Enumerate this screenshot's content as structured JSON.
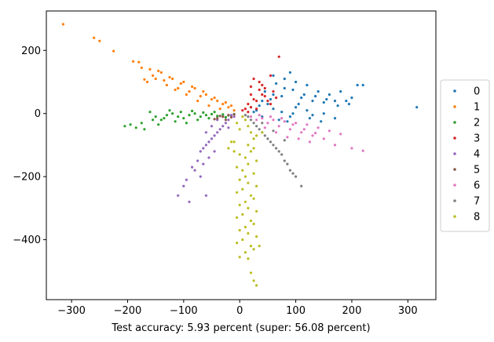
{
  "chart_data": {
    "type": "scatter",
    "title": "",
    "xlabel": "Test accuracy: 5.93 percent (super: 56.08 percent)",
    "ylabel": "",
    "xlim": [
      -345,
      350
    ],
    "ylim": [
      -590,
      325
    ],
    "xticks": [
      -300,
      -200,
      -100,
      0,
      100,
      200,
      300
    ],
    "yticks": [
      200,
      0,
      -200,
      -400
    ],
    "xtick_labels": [
      "−300",
      "−200",
      "−100",
      "0",
      "100",
      "200",
      "300"
    ],
    "ytick_labels": [
      "200",
      "0",
      "−200",
      "−400"
    ],
    "grid": false,
    "legend_position": "center-right-outside",
    "series": [
      {
        "name": "0",
        "color": "#1f77b4",
        "points": [
          [
            20,
            20
          ],
          [
            40,
            40
          ],
          [
            60,
            60
          ],
          [
            80,
            80
          ],
          [
            100,
            100
          ],
          [
            120,
            90
          ],
          [
            140,
            70
          ],
          [
            160,
            60
          ],
          [
            180,
            70
          ],
          [
            200,
            50
          ],
          [
            220,
            90
          ],
          [
            210,
            90
          ],
          [
            316,
            20
          ],
          [
            100,
            20
          ],
          [
            120,
            10
          ],
          [
            60,
            15
          ],
          [
            70,
            -20
          ],
          [
            90,
            -10
          ],
          [
            130,
            -5
          ],
          [
            150,
            0
          ],
          [
            170,
            -15
          ],
          [
            50,
            30
          ],
          [
            30,
            10
          ],
          [
            80,
            110
          ],
          [
            60,
            120
          ],
          [
            90,
            130
          ],
          [
            110,
            50
          ],
          [
            130,
            40
          ],
          [
            150,
            35
          ],
          [
            170,
            40
          ],
          [
            190,
            40
          ],
          [
            45,
            70
          ],
          [
            85,
            -25
          ],
          [
            40,
            -10
          ],
          [
            25,
            5
          ],
          [
            35,
            25
          ],
          [
            55,
            45
          ],
          [
            75,
            55
          ],
          [
            95,
            75
          ],
          [
            115,
            60
          ],
          [
            135,
            55
          ],
          [
            155,
            45
          ],
          [
            175,
            25
          ],
          [
            195,
            30
          ],
          [
            65,
            95
          ],
          [
            105,
            30
          ],
          [
            125,
            -15
          ],
          [
            145,
            -25
          ],
          [
            75,
            5
          ],
          [
            95,
            0
          ]
        ]
      },
      {
        "name": "1",
        "color": "#ff7f0e",
        "points": [
          [
            -315,
            283
          ],
          [
            -260,
            240
          ],
          [
            -250,
            230
          ],
          [
            -225,
            198
          ],
          [
            -190,
            165
          ],
          [
            -180,
            163
          ],
          [
            -160,
            140
          ],
          [
            -140,
            130
          ],
          [
            -150,
            110
          ],
          [
            -120,
            110
          ],
          [
            -100,
            100
          ],
          [
            -80,
            80
          ],
          [
            -60,
            60
          ],
          [
            -40,
            40
          ],
          [
            -20,
            20
          ],
          [
            -170,
            108
          ],
          [
            -130,
            90
          ],
          [
            -110,
            80
          ],
          [
            -90,
            70
          ],
          [
            -70,
            55
          ],
          [
            -50,
            45
          ],
          [
            -30,
            30
          ],
          [
            -10,
            10
          ],
          [
            -145,
            135
          ],
          [
            -165,
            100
          ],
          [
            -125,
            115
          ],
          [
            -105,
            95
          ],
          [
            -85,
            85
          ],
          [
            -65,
            70
          ],
          [
            -45,
            50
          ],
          [
            -25,
            35
          ],
          [
            -55,
            25
          ],
          [
            -35,
            15
          ],
          [
            -15,
            25
          ],
          [
            -95,
            60
          ],
          [
            -75,
            40
          ],
          [
            -115,
            75
          ],
          [
            -135,
            105
          ],
          [
            -155,
            120
          ],
          [
            -175,
            145
          ]
        ]
      },
      {
        "name": "2",
        "color": "#2ca02c",
        "points": [
          [
            -205,
            -40
          ],
          [
            -185,
            -45
          ],
          [
            -170,
            -50
          ],
          [
            -160,
            5
          ],
          [
            -150,
            -10
          ],
          [
            -140,
            -20
          ],
          [
            -130,
            -5
          ],
          [
            -120,
            0
          ],
          [
            -110,
            -10
          ],
          [
            -100,
            -15
          ],
          [
            -90,
            -5
          ],
          [
            -80,
            0
          ],
          [
            -70,
            -10
          ],
          [
            -60,
            -5
          ],
          [
            -50,
            -2
          ],
          [
            -40,
            -8
          ],
          [
            -30,
            -3
          ],
          [
            -20,
            -6
          ],
          [
            -10,
            -2
          ],
          [
            -155,
            -20
          ],
          [
            -135,
            -15
          ],
          [
            -115,
            -25
          ],
          [
            -95,
            -30
          ],
          [
            -75,
            -20
          ],
          [
            -125,
            10
          ],
          [
            -105,
            5
          ],
          [
            -85,
            8
          ],
          [
            -65,
            3
          ],
          [
            -45,
            5
          ],
          [
            -175,
            -30
          ],
          [
            -195,
            -35
          ],
          [
            -145,
            -35
          ],
          [
            -25,
            -12
          ],
          [
            -55,
            -15
          ]
        ]
      },
      {
        "name": "3",
        "color": "#d62728",
        "points": [
          [
            20,
            20
          ],
          [
            30,
            40
          ],
          [
            40,
            60
          ],
          [
            45,
            80
          ],
          [
            35,
            100
          ],
          [
            25,
            110
          ],
          [
            55,
            120
          ],
          [
            70,
            180
          ],
          [
            15,
            30
          ],
          [
            10,
            15
          ],
          [
            30,
            15
          ],
          [
            50,
            40
          ],
          [
            60,
            70
          ],
          [
            20,
            60
          ],
          [
            40,
            90
          ],
          [
            5,
            10
          ],
          [
            25,
            45
          ],
          [
            45,
            55
          ],
          [
            35,
            75
          ],
          [
            15,
            5
          ],
          [
            55,
            30
          ],
          [
            65,
            50
          ],
          [
            20,
            85
          ]
        ]
      },
      {
        "name": "4",
        "color": "#9467bd",
        "points": [
          [
            -20,
            -20
          ],
          [
            -30,
            -40
          ],
          [
            -40,
            -60
          ],
          [
            -50,
            -80
          ],
          [
            -60,
            -100
          ],
          [
            -70,
            -120
          ],
          [
            -80,
            -180
          ],
          [
            -70,
            -200
          ],
          [
            -100,
            -230
          ],
          [
            -60,
            -260
          ],
          [
            -90,
            -280
          ],
          [
            -110,
            -260
          ],
          [
            -10,
            -10
          ],
          [
            -25,
            -30
          ],
          [
            -35,
            -50
          ],
          [
            -45,
            -70
          ],
          [
            -55,
            -90
          ],
          [
            -65,
            -110
          ],
          [
            -75,
            -150
          ],
          [
            -85,
            -170
          ],
          [
            -95,
            -210
          ],
          [
            -50,
            -40
          ],
          [
            -40,
            -20
          ],
          [
            -30,
            -10
          ],
          [
            -60,
            -60
          ],
          [
            -45,
            -120
          ],
          [
            -55,
            -140
          ],
          [
            -65,
            -160
          ],
          [
            -15,
            -5
          ],
          [
            -20,
            -45
          ]
        ]
      },
      {
        "name": "5",
        "color": "#8c564b",
        "points": [
          [
            -30,
            -10
          ],
          [
            -20,
            -5
          ],
          [
            -40,
            -15
          ],
          [
            -15,
            -12
          ],
          [
            -25,
            -20
          ],
          [
            -35,
            -8
          ],
          [
            -10,
            -3
          ],
          [
            -45,
            -18
          ]
        ]
      },
      {
        "name": "6",
        "color": "#e377c2",
        "points": [
          [
            30,
            -20
          ],
          [
            50,
            -30
          ],
          [
            70,
            -40
          ],
          [
            90,
            -50
          ],
          [
            110,
            -60
          ],
          [
            130,
            -70
          ],
          [
            150,
            -80
          ],
          [
            170,
            -100
          ],
          [
            200,
            -110
          ],
          [
            220,
            -118
          ],
          [
            20,
            -10
          ],
          [
            40,
            -15
          ],
          [
            60,
            -20
          ],
          [
            80,
            -25
          ],
          [
            100,
            -30
          ],
          [
            120,
            -35
          ],
          [
            140,
            -45
          ],
          [
            160,
            -55
          ],
          [
            180,
            -65
          ],
          [
            45,
            -45
          ],
          [
            65,
            -60
          ],
          [
            85,
            -75
          ],
          [
            105,
            -80
          ],
          [
            125,
            -90
          ],
          [
            35,
            -5
          ],
          [
            55,
            -10
          ],
          [
            75,
            -15
          ],
          [
            95,
            -35
          ],
          [
            115,
            -50
          ],
          [
            135,
            -62
          ]
        ]
      },
      {
        "name": "7",
        "color": "#7f7f7f",
        "points": [
          [
            20,
            -20
          ],
          [
            30,
            -40
          ],
          [
            40,
            -60
          ],
          [
            50,
            -80
          ],
          [
            60,
            -100
          ],
          [
            70,
            -120
          ],
          [
            80,
            -150
          ],
          [
            90,
            -180
          ],
          [
            100,
            -200
          ],
          [
            110,
            -230
          ],
          [
            25,
            -30
          ],
          [
            35,
            -50
          ],
          [
            45,
            -70
          ],
          [
            55,
            -90
          ],
          [
            65,
            -110
          ],
          [
            75,
            -130
          ],
          [
            85,
            -160
          ],
          [
            95,
            -190
          ],
          [
            15,
            -10
          ],
          [
            10,
            -5
          ],
          [
            40,
            -30
          ],
          [
            60,
            -55
          ],
          [
            80,
            -85
          ]
        ]
      },
      {
        "name": "8",
        "color": "#bcbd22",
        "points": [
          [
            5,
            -10
          ],
          [
            10,
            -20
          ],
          [
            15,
            -40
          ],
          [
            20,
            -60
          ],
          [
            25,
            -80
          ],
          [
            15,
            -100
          ],
          [
            20,
            -120
          ],
          [
            10,
            -140
          ],
          [
            15,
            -160
          ],
          [
            5,
            -180
          ],
          [
            10,
            -200
          ],
          [
            15,
            -220
          ],
          [
            5,
            -240
          ],
          [
            20,
            -260
          ],
          [
            10,
            -280
          ],
          [
            15,
            -300
          ],
          [
            5,
            -320
          ],
          [
            20,
            -340
          ],
          [
            10,
            -360
          ],
          [
            15,
            -380
          ],
          [
            5,
            -400
          ],
          [
            20,
            -420
          ],
          [
            10,
            -440
          ],
          [
            15,
            -460
          ],
          [
            20,
            -505
          ],
          [
            25,
            -530
          ],
          [
            30,
            -545
          ],
          [
            -5,
            -30
          ],
          [
            0,
            -50
          ],
          [
            30,
            -70
          ],
          [
            -10,
            -90
          ],
          [
            25,
            -110
          ],
          [
            0,
            -130
          ],
          [
            30,
            -150
          ],
          [
            -5,
            -170
          ],
          [
            25,
            -190
          ],
          [
            0,
            -210
          ],
          [
            30,
            -230
          ],
          [
            -5,
            -250
          ],
          [
            25,
            -270
          ],
          [
            0,
            -290
          ],
          [
            30,
            -310
          ],
          [
            -5,
            -330
          ],
          [
            25,
            -350
          ],
          [
            0,
            -370
          ],
          [
            30,
            -390
          ],
          [
            -5,
            -410
          ],
          [
            25,
            -430
          ],
          [
            0,
            -455
          ],
          [
            35,
            -420
          ],
          [
            -10,
            -120
          ],
          [
            -20,
            -110
          ],
          [
            40,
            -60
          ],
          [
            -15,
            -90
          ]
        ]
      }
    ]
  }
}
